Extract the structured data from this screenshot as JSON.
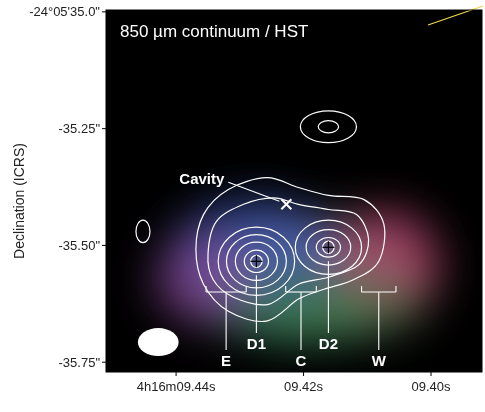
{
  "chart_data": {
    "type": "contour",
    "title": "850 µm continuum / HST",
    "y_label": "Declination (ICRS)",
    "color": "#ffffff",
    "xlim": [
      9.451,
      9.392
    ],
    "ylim": [
      -35.771,
      -34.996
    ],
    "xticks": [
      {
        "value": 9.44,
        "label": "4h16m09.44s"
      },
      {
        "value": 9.42,
        "label": "09.42s"
      },
      {
        "value": 9.4,
        "label": "09.40s"
      }
    ],
    "yticks": [
      {
        "value": -35.0,
        "label": "-24°05'35.0\""
      },
      {
        "value": -35.25,
        "label": "-35.25\""
      },
      {
        "value": -35.5,
        "label": "-35.50\""
      },
      {
        "value": -35.75,
        "label": "-35.75\""
      }
    ],
    "contour_paths": [
      {
        "x": [
          9.4369,
          9.4357,
          9.4318,
          9.4258,
          9.4208,
          9.4161,
          9.4105,
          9.4074,
          9.4082,
          9.4121,
          9.4168,
          9.4208,
          9.4258,
          9.4318,
          9.4357
        ],
        "y": [
          -35.509,
          -35.434,
          -35.38,
          -35.355,
          -35.376,
          -35.393,
          -35.402,
          -35.455,
          -35.534,
          -35.573,
          -35.594,
          -35.615,
          -35.662,
          -35.641,
          -35.583
        ]
      },
      {
        "x": [
          9.435,
          9.4337,
          9.4294,
          9.4247,
          9.4208,
          9.4161,
          9.4117,
          9.4098,
          9.4113,
          9.4161,
          9.4208,
          9.4255,
          9.431,
          9.4342
        ],
        "y": [
          -35.519,
          -35.449,
          -35.412,
          -35.398,
          -35.412,
          -35.423,
          -35.434,
          -35.487,
          -35.541,
          -35.568,
          -35.583,
          -35.626,
          -35.611,
          -35.573
        ]
      }
    ],
    "contour_rings": [
      {
        "x": 9.4274,
        "y": -35.534,
        "rx": 0.006,
        "ry": 0.073
      },
      {
        "x": 9.4274,
        "y": -35.534,
        "rx": 0.0047,
        "ry": 0.057
      },
      {
        "x": 9.4274,
        "y": -35.534,
        "rx": 0.0033,
        "ry": 0.041
      },
      {
        "x": 9.4274,
        "y": -35.534,
        "rx": 0.0019,
        "ry": 0.024
      },
      {
        "x": 9.4274,
        "y": -35.534,
        "rx": 0.0009,
        "ry": 0.013
      },
      {
        "x": 9.4161,
        "y": -35.504,
        "rx": 0.0052,
        "ry": 0.058
      },
      {
        "x": 9.4161,
        "y": -35.504,
        "rx": 0.0035,
        "ry": 0.038
      },
      {
        "x": 9.4161,
        "y": -35.504,
        "rx": 0.0019,
        "ry": 0.021
      },
      {
        "x": 9.4161,
        "y": -35.504,
        "rx": 0.0009,
        "ry": 0.013
      },
      {
        "x": 9.4161,
        "y": -35.246,
        "rx": 0.0044,
        "ry": 0.034
      },
      {
        "x": 9.4161,
        "y": -35.246,
        "rx": 0.0016,
        "ry": 0.013
      },
      {
        "x": 9.4452,
        "y": -35.47,
        "rx": 0.0011,
        "ry": 0.024
      }
    ],
    "peaks": [
      {
        "label": "D1",
        "x": 9.4274,
        "y": -35.534
      },
      {
        "label": "D2",
        "x": 9.4161,
        "y": -35.504
      }
    ],
    "cavity": {
      "label": "Cavity",
      "x": 9.4227,
      "y": -35.412
    },
    "regions": [
      {
        "label": "E",
        "x": [
          9.4353,
          9.429
        ]
      },
      {
        "label": "C",
        "x": [
          9.4228,
          9.418
        ]
      },
      {
        "label": "W",
        "x": [
          9.4109,
          9.4055
        ]
      }
    ],
    "beam": {
      "x": 9.4428,
      "y": -35.707,
      "rx": 0.0032,
      "ry": 0.03
    }
  }
}
